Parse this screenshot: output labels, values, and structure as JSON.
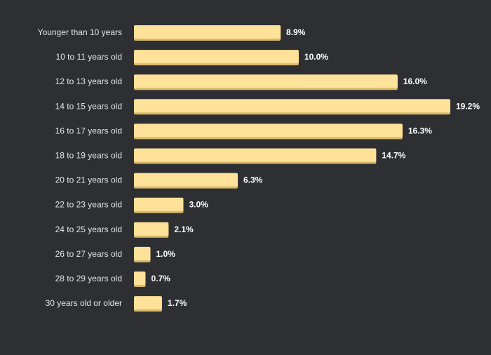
{
  "chart_data": {
    "type": "bar",
    "orientation": "horizontal",
    "title": "",
    "xlabel": "",
    "ylabel": "",
    "categories": [
      "Younger than 10 years",
      "10 to 11 years old",
      "12 to 13 years old",
      "14 to 15 years old",
      "16 to 17 years old",
      "18 to 19 years old",
      "20 to 21 years old",
      "22 to 23 years old",
      "24 to 25 years old",
      "26 to 27 years old",
      "28 to 29 years old",
      "30 years old or older"
    ],
    "values": [
      8.9,
      10.0,
      16.0,
      19.2,
      16.3,
      14.7,
      6.3,
      3.0,
      2.1,
      1.0,
      0.7,
      1.7
    ],
    "value_labels": [
      "8.9%",
      "10.0%",
      "16.0%",
      "19.2%",
      "16.3%",
      "14.7%",
      "6.3%",
      "3.0%",
      "2.1%",
      "1.0%",
      "0.7%",
      "1.7%"
    ],
    "unit": "%",
    "xlim": [
      0,
      19.2
    ],
    "grid": false,
    "legend": "none",
    "colors": {
      "background": "#2e2f33",
      "bar": "#ffe299",
      "bar_shadow": "#d9b96a",
      "category_text": "#e6e6e6",
      "value_text": "#ffffff"
    }
  }
}
